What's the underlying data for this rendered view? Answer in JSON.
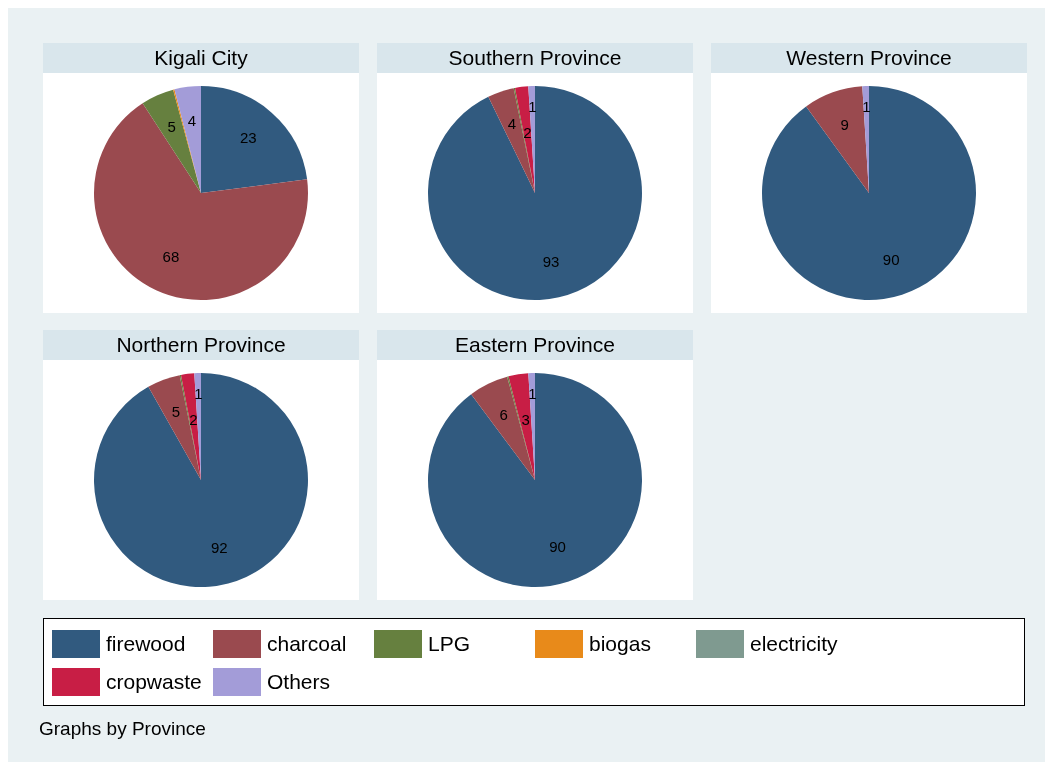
{
  "chart_data": [
    {
      "type": "pie",
      "title": "Kigali City",
      "categories": [
        "firewood",
        "charcoal",
        "LPG",
        "biogas",
        "electricity",
        "cropwaste",
        "Others"
      ],
      "values": [
        23,
        68,
        5,
        0.2,
        0,
        0,
        4
      ],
      "colors": [
        "#315a7f",
        "#9a4a4f",
        "#66803f",
        "#e88a1a",
        "#7f9a90",
        "#c81e45",
        "#a39cd8"
      ],
      "value_labels": [
        "23",
        "68",
        "5",
        null,
        null,
        null,
        "4"
      ],
      "legend": "bottom",
      "annotations": [
        "Graphs by Province"
      ]
    },
    {
      "type": "pie",
      "title": "Southern Province",
      "categories": [
        null,
        null,
        null,
        null,
        null,
        null,
        null
      ],
      "values": [
        93,
        4,
        0.2,
        0,
        0,
        2,
        1
      ],
      "colors": [
        "#315a7f",
        "#9a4a4f",
        "#66803f",
        "#e88a1a",
        "#7f9a90",
        "#c81e45",
        "#a39cd8"
      ],
      "value_labels": [
        "93",
        "4",
        null,
        null,
        null,
        "2",
        "1"
      ]
    },
    {
      "type": "pie",
      "title": "Western Province",
      "categories": [
        null,
        null,
        null,
        null,
        null,
        null,
        null
      ],
      "values": [
        90,
        9,
        0,
        0,
        0,
        0,
        1
      ],
      "colors": [
        "#315a7f",
        "#9a4a4f",
        "#66803f",
        "#e88a1a",
        "#7f9a90",
        "#c81e45",
        "#a39cd8"
      ],
      "value_labels": [
        "90",
        "9",
        null,
        null,
        null,
        null,
        "1"
      ]
    },
    {
      "type": "pie",
      "title": "Northern Province",
      "categories": [
        null,
        null,
        null,
        null,
        null,
        null,
        null
      ],
      "values": [
        92,
        5,
        0.2,
        0,
        0,
        2,
        1
      ],
      "colors": [
        "#315a7f",
        "#9a4a4f",
        "#66803f",
        "#e88a1a",
        "#7f9a90",
        "#c81e45",
        "#a39cd8"
      ],
      "value_labels": [
        "92",
        "5",
        null,
        null,
        null,
        "2",
        "1"
      ]
    },
    {
      "type": "pie",
      "title": "Eastern Province",
      "categories": [
        null,
        null,
        null,
        null,
        null,
        null,
        null
      ],
      "values": [
        90,
        6,
        0.2,
        0,
        0,
        3,
        1
      ],
      "colors": [
        "#315a7f",
        "#9a4a4f",
        "#66803f",
        "#e88a1a",
        "#7f9a90",
        "#c81e45",
        "#a39cd8"
      ],
      "value_labels": [
        "90",
        "6",
        null,
        null,
        null,
        "3",
        "1"
      ]
    }
  ]
}
